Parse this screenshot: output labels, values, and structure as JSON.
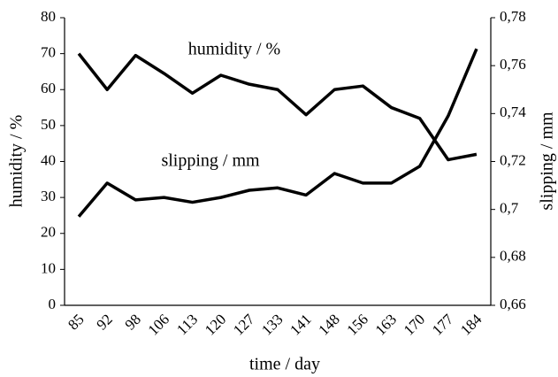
{
  "chart_data": {
    "type": "line",
    "xlabel": "time / day",
    "ylabel": "humidity / %",
    "y2label": "slipping / mm",
    "categories": [
      "85",
      "92",
      "98",
      "106",
      "113",
      "120",
      "127",
      "133",
      "141",
      "148",
      "156",
      "163",
      "170",
      "177",
      "184"
    ],
    "series": [
      {
        "name": "humidity / %",
        "color": "#000000",
        "values": [
          70,
          60,
          69.5,
          64.5,
          59,
          64,
          61.5,
          60,
          53,
          60,
          61,
          55,
          52,
          40.5,
          42
        ]
      },
      {
        "name": "slipping / mm",
        "color": "#000000",
        "axis": "y2",
        "values": [
          0.697,
          0.711,
          0.704,
          0.705,
          0.703,
          0.705,
          0.708,
          0.709,
          0.706,
          0.715,
          0.711,
          0.711,
          0.718,
          0.739,
          0.767
        ]
      }
    ],
    "ylim": [
      0,
      80
    ],
    "yticks": [
      0,
      10,
      20,
      30,
      40,
      50,
      60,
      70,
      80
    ],
    "y2lim": [
      0.66,
      0.78
    ],
    "y2ticks": [
      {
        "value": 0.66,
        "label": "0,66"
      },
      {
        "value": 0.68,
        "label": "0,68"
      },
      {
        "value": 0.7,
        "label": "0,7"
      },
      {
        "value": 0.72,
        "label": "0,72"
      },
      {
        "value": 0.74,
        "label": "0,74"
      },
      {
        "value": 0.76,
        "label": "0,76"
      },
      {
        "value": 0.78,
        "label": "0,78"
      }
    ],
    "grid": false
  }
}
